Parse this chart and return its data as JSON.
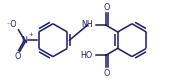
{
  "bg_color": "#ffffff",
  "bond_color": "#1a1a6e",
  "atom_color": "#1a1a6e",
  "lw": 1.1,
  "fs": 5.8,
  "fig_w": 1.69,
  "fig_h": 0.83,
  "xlim": [
    0,
    169
  ],
  "ylim": [
    0,
    83
  ]
}
